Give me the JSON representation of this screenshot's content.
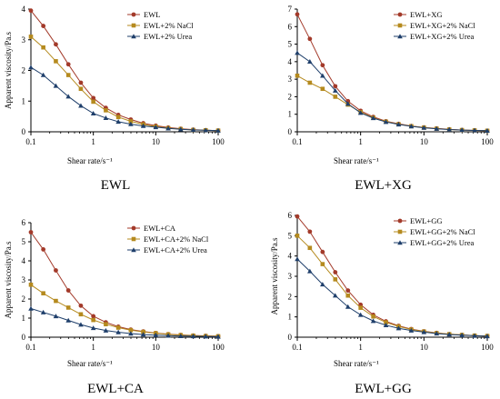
{
  "colors": {
    "s1": "#A33A2A",
    "s2": "#B58A1E",
    "s3": "#1F3F6B",
    "axis": "#000000"
  },
  "chart_data": [
    {
      "type": "line",
      "caption": "EWL",
      "xlabel": "Shear rate/s⁻¹",
      "ylabel": "Apparent viscosity/Pa.s",
      "xscale": "log",
      "xlim": [
        0.1,
        100
      ],
      "ylim": [
        0,
        4
      ],
      "yticks": [
        0,
        1,
        2,
        3,
        4
      ],
      "xticks": [
        0.1,
        1,
        10,
        100
      ],
      "xtick_labels": [
        "0.1",
        "1",
        "10",
        "100"
      ],
      "legend_position": "top-right",
      "x": [
        0.1,
        0.158,
        0.251,
        0.398,
        0.631,
        1.0,
        1.585,
        2.512,
        3.981,
        6.31,
        10,
        15.85,
        25.12,
        39.81,
        63.1,
        100
      ],
      "series": [
        {
          "name": "EWL",
          "marker": "circle",
          "values": [
            3.95,
            3.45,
            2.85,
            2.2,
            1.6,
            1.1,
            0.78,
            0.55,
            0.4,
            0.28,
            0.2,
            0.14,
            0.1,
            0.07,
            0.05,
            0.04
          ]
        },
        {
          "name": "EWL+2% NaCl",
          "marker": "square",
          "values": [
            3.1,
            2.75,
            2.3,
            1.85,
            1.4,
            0.98,
            0.7,
            0.48,
            0.34,
            0.24,
            0.17,
            0.12,
            0.09,
            0.06,
            0.05,
            0.04
          ]
        },
        {
          "name": "EWL+2% Urea",
          "marker": "triangle",
          "values": [
            2.1,
            1.85,
            1.5,
            1.15,
            0.85,
            0.6,
            0.45,
            0.33,
            0.25,
            0.19,
            0.15,
            0.11,
            0.08,
            0.06,
            0.05,
            0.04
          ]
        }
      ]
    },
    {
      "type": "line",
      "caption": "EWL+XG",
      "xlabel": "Shear rate/s⁻¹",
      "ylabel": "",
      "xscale": "log",
      "xlim": [
        0.1,
        100
      ],
      "ylim": [
        0,
        7
      ],
      "yticks": [
        0,
        1,
        2,
        3,
        4,
        5,
        6,
        7
      ],
      "xticks": [
        0.1,
        1,
        10,
        100
      ],
      "xtick_labels": [
        "0.1",
        "1",
        "10",
        "100"
      ],
      "legend_position": "top-right",
      "x": [
        0.1,
        0.158,
        0.251,
        0.398,
        0.631,
        1.0,
        1.585,
        2.512,
        3.981,
        6.31,
        10,
        15.85,
        25.12,
        39.81,
        63.1,
        100
      ],
      "series": [
        {
          "name": "EWL+XG",
          "marker": "circle",
          "values": [
            6.7,
            5.3,
            3.8,
            2.6,
            1.75,
            1.2,
            0.85,
            0.6,
            0.45,
            0.33,
            0.25,
            0.19,
            0.14,
            0.1,
            0.08,
            0.06
          ]
        },
        {
          "name": "EWL+XG+2% NaCl",
          "marker": "square",
          "values": [
            3.2,
            2.8,
            2.45,
            2.0,
            1.55,
            1.12,
            0.8,
            0.58,
            0.43,
            0.32,
            0.24,
            0.18,
            0.13,
            0.1,
            0.08,
            0.06
          ]
        },
        {
          "name": "EWL+XG+2% Urea",
          "marker": "triangle",
          "values": [
            4.5,
            4.0,
            3.2,
            2.35,
            1.6,
            1.08,
            0.78,
            0.56,
            0.42,
            0.31,
            0.23,
            0.17,
            0.13,
            0.1,
            0.08,
            0.06
          ]
        }
      ]
    },
    {
      "type": "line",
      "caption": "EWL+CA",
      "xlabel": "Shear rate/s⁻¹",
      "ylabel": "Apparent viscosity/Pa.s",
      "xscale": "log",
      "xlim": [
        0.1,
        100
      ],
      "ylim": [
        0,
        6
      ],
      "yticks": [
        0,
        1,
        2,
        3,
        4,
        5,
        6
      ],
      "xticks": [
        0.1,
        1,
        10,
        100
      ],
      "xtick_labels": [
        "0.1",
        "1",
        "10",
        "100"
      ],
      "legend_position": "top-right",
      "x": [
        0.1,
        0.158,
        0.251,
        0.398,
        0.631,
        1.0,
        1.585,
        2.512,
        3.981,
        6.31,
        10,
        15.85,
        25.12,
        39.81,
        63.1,
        100
      ],
      "series": [
        {
          "name": "EWL+CA",
          "marker": "circle",
          "values": [
            5.5,
            4.6,
            3.5,
            2.45,
            1.65,
            1.1,
            0.78,
            0.55,
            0.4,
            0.3,
            0.22,
            0.16,
            0.12,
            0.09,
            0.07,
            0.05
          ]
        },
        {
          "name": "EWL+CA+2% NaCl",
          "marker": "square",
          "values": [
            2.75,
            2.3,
            1.9,
            1.55,
            1.2,
            0.9,
            0.68,
            0.5,
            0.37,
            0.28,
            0.21,
            0.15,
            0.11,
            0.08,
            0.06,
            0.05
          ]
        },
        {
          "name": "EWL+CA+2% Urea",
          "marker": "triangle",
          "values": [
            1.5,
            1.3,
            1.1,
            0.88,
            0.66,
            0.48,
            0.35,
            0.26,
            0.19,
            0.14,
            0.11,
            0.08,
            0.06,
            0.05,
            0.04,
            0.03
          ]
        }
      ]
    },
    {
      "type": "line",
      "caption": "EWL+GG",
      "xlabel": "Shear rate/s⁻¹",
      "ylabel": "Apparent viscosity/Pa.s",
      "xscale": "log",
      "xlim": [
        0.1,
        100
      ],
      "ylim": [
        0,
        6
      ],
      "yticks": [
        0,
        1,
        2,
        3,
        4,
        5,
        6
      ],
      "xticks": [
        0.1,
        1,
        10,
        100
      ],
      "xtick_labels": [
        "0.1",
        "1",
        "10",
        "100"
      ],
      "legend_position": "top-right",
      "x": [
        0.1,
        0.158,
        0.251,
        0.398,
        0.631,
        1.0,
        1.585,
        2.512,
        3.981,
        6.31,
        10,
        15.85,
        25.12,
        39.81,
        63.1,
        100
      ],
      "series": [
        {
          "name": "EWL+GG",
          "marker": "circle",
          "values": [
            5.95,
            5.2,
            4.2,
            3.2,
            2.3,
            1.6,
            1.1,
            0.78,
            0.56,
            0.4,
            0.29,
            0.21,
            0.15,
            0.11,
            0.08,
            0.06
          ]
        },
        {
          "name": "EWL+GG+2% NaCl",
          "marker": "square",
          "values": [
            5.0,
            4.4,
            3.6,
            2.85,
            2.05,
            1.45,
            1.02,
            0.73,
            0.53,
            0.38,
            0.28,
            0.2,
            0.15,
            0.11,
            0.08,
            0.06
          ]
        },
        {
          "name": "EWL+GG+2% Urea",
          "marker": "triangle",
          "values": [
            3.85,
            3.25,
            2.6,
            2.05,
            1.5,
            1.1,
            0.8,
            0.59,
            0.44,
            0.33,
            0.25,
            0.18,
            0.13,
            0.1,
            0.07,
            0.05
          ]
        }
      ]
    }
  ]
}
